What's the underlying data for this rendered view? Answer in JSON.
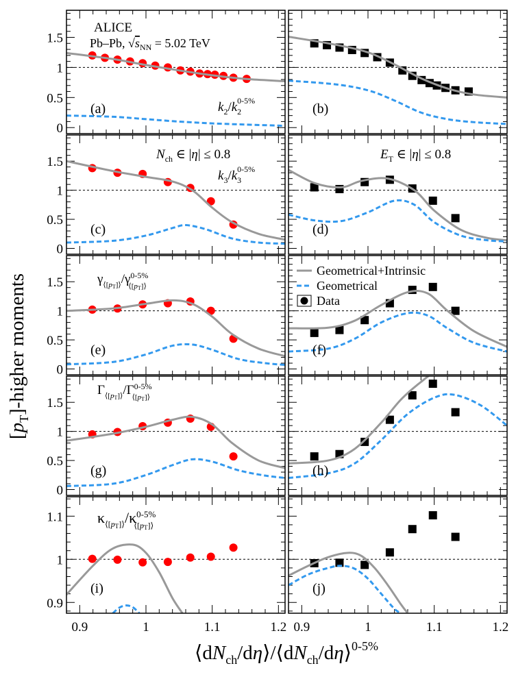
{
  "figure": {
    "ylabel": "[p_T]-higher moments",
    "xlabel": "⟨dN_ch/dη⟩/⟨dN_ch/dη⟩^0-5%",
    "experiment": "ALICE",
    "system": "Pb–Pb, √sNN = 5.02 TeV",
    "colors": {
      "alice_data": "#ff0000",
      "model_data": "#000000",
      "geom_intrinsic": "#999999",
      "geometrical": "#3399ee"
    }
  },
  "chart_data": [
    {
      "type": "line",
      "panel": "(a)",
      "label": "k2/k2^0-5%",
      "xlim": [
        0.88,
        1.21
      ],
      "ylim": [
        -0.1,
        1.95
      ],
      "xticks": [],
      "yticks": [
        "0",
        "0.5",
        "1",
        "1.5"
      ],
      "series": [
        {
          "name": "Data",
          "kind": "points",
          "x": [
            0.919,
            0.938,
            0.957,
            0.976,
            0.995,
            1.014,
            1.033,
            1.052,
            1.067,
            1.081,
            1.093,
            1.104,
            1.117,
            1.132,
            1.152
          ],
          "y": [
            1.2,
            1.16,
            1.13,
            1.1,
            1.07,
            1.03,
            1.0,
            0.95,
            0.93,
            0.9,
            0.89,
            0.88,
            0.86,
            0.83,
            0.81
          ]
        },
        {
          "name": "Geometrical+Intrinsic",
          "kind": "line",
          "x": [
            0.88,
            0.95,
            1.0,
            1.05,
            1.1,
            1.15,
            1.21
          ],
          "y": [
            1.24,
            1.14,
            1.04,
            0.95,
            0.87,
            0.81,
            0.77
          ]
        },
        {
          "name": "Geometrical",
          "kind": "dashed",
          "x": [
            0.88,
            0.95,
            1.0,
            1.05,
            1.1,
            1.15,
            1.21
          ],
          "y": [
            0.2,
            0.18,
            0.14,
            0.1,
            0.07,
            0.05,
            0.03
          ]
        }
      ]
    },
    {
      "type": "line",
      "panel": "(b)",
      "label": "",
      "xlim": [
        0.88,
        1.21
      ],
      "ylim": [
        -0.1,
        1.95
      ],
      "xticks": [],
      "yticks": [],
      "series": [
        {
          "name": "Data",
          "kind": "points",
          "x": [
            0.919,
            0.938,
            0.957,
            0.976,
            0.995,
            1.014,
            1.033,
            1.052,
            1.067,
            1.081,
            1.093,
            1.104,
            1.117,
            1.132,
            1.152
          ],
          "y": [
            1.4,
            1.37,
            1.33,
            1.29,
            1.24,
            1.17,
            1.08,
            0.95,
            0.86,
            0.79,
            0.74,
            0.7,
            0.66,
            0.62,
            0.6
          ]
        },
        {
          "name": "Geometrical+Intrinsic",
          "kind": "line",
          "x": [
            0.88,
            0.95,
            1.0,
            1.04,
            1.08,
            1.12,
            1.16,
            1.21
          ],
          "y": [
            1.51,
            1.38,
            1.25,
            1.05,
            0.82,
            0.65,
            0.55,
            0.5
          ]
        },
        {
          "name": "Geometrical",
          "kind": "dashed",
          "x": [
            0.88,
            0.95,
            1.0,
            1.04,
            1.08,
            1.12,
            1.16,
            1.21
          ],
          "y": [
            0.78,
            0.72,
            0.62,
            0.45,
            0.25,
            0.14,
            0.09,
            0.06
          ]
        }
      ]
    },
    {
      "type": "line",
      "panel": "(c)",
      "label": "k3/k3^0-5%",
      "header": "N_ch ∈ |η| ≤ 0.8",
      "xlim": [
        0.88,
        1.21
      ],
      "ylim": [
        -0.1,
        1.95
      ],
      "xticks": [],
      "yticks": [
        "0",
        "0.5",
        "1",
        "1.5"
      ],
      "series": [
        {
          "name": "Data",
          "kind": "points",
          "x": [
            0.919,
            0.957,
            0.995,
            1.033,
            1.067,
            1.098,
            1.132
          ],
          "y": [
            1.38,
            1.3,
            1.28,
            1.14,
            1.04,
            0.81,
            0.41
          ]
        },
        {
          "name": "Geometrical+Intrinsic",
          "kind": "line",
          "x": [
            0.88,
            0.95,
            1.0,
            1.04,
            1.07,
            1.1,
            1.13,
            1.17,
            1.21
          ],
          "y": [
            1.5,
            1.33,
            1.23,
            1.15,
            1.0,
            0.7,
            0.45,
            0.25,
            0.15
          ]
        },
        {
          "name": "Geometrical",
          "kind": "dashed",
          "x": [
            0.88,
            0.95,
            1.0,
            1.04,
            1.06,
            1.09,
            1.13,
            1.17,
            1.21
          ],
          "y": [
            0.1,
            0.13,
            0.22,
            0.35,
            0.4,
            0.33,
            0.17,
            0.1,
            0.08
          ]
        }
      ]
    },
    {
      "type": "line",
      "panel": "(d)",
      "label": "",
      "header": "E_T ∈ |η| ≤ 0.8",
      "xlim": [
        0.88,
        1.21
      ],
      "ylim": [
        -0.1,
        1.95
      ],
      "xticks": [],
      "yticks": [],
      "series": [
        {
          "name": "Data",
          "kind": "points",
          "x": [
            0.919,
            0.957,
            0.995,
            1.033,
            1.067,
            1.098,
            1.132
          ],
          "y": [
            1.05,
            1.02,
            1.14,
            1.18,
            1.03,
            0.82,
            0.52
          ]
        },
        {
          "name": "Geometrical+Intrinsic",
          "kind": "line",
          "x": [
            0.88,
            0.92,
            0.96,
            0.99,
            1.03,
            1.07,
            1.1,
            1.14,
            1.18,
            1.21
          ],
          "y": [
            1.35,
            1.12,
            1.05,
            1.16,
            1.2,
            1.0,
            0.65,
            0.32,
            0.18,
            0.14
          ]
        },
        {
          "name": "Geometrical",
          "kind": "dashed",
          "x": [
            0.88,
            0.92,
            0.96,
            1.0,
            1.04,
            1.07,
            1.1,
            1.14,
            1.18,
            1.21
          ],
          "y": [
            0.58,
            0.48,
            0.47,
            0.62,
            0.82,
            0.75,
            0.45,
            0.22,
            0.14,
            0.12
          ]
        }
      ]
    },
    {
      "type": "line",
      "panel": "(e)",
      "label": "γ⟨[pT]⟩/γ^0-5%⟨[pT]⟩",
      "xlim": [
        0.88,
        1.21
      ],
      "ylim": [
        -0.1,
        1.95
      ],
      "xticks": [],
      "yticks": [
        "0",
        "0.5",
        "1",
        "1.5"
      ],
      "series": [
        {
          "name": "Data",
          "kind": "points",
          "x": [
            0.919,
            0.957,
            0.995,
            1.033,
            1.067,
            1.098,
            1.132
          ],
          "y": [
            1.02,
            1.04,
            1.11,
            1.13,
            1.16,
            1.0,
            0.52
          ]
        },
        {
          "name": "Geometrical+Intrinsic",
          "kind": "line",
          "x": [
            0.88,
            0.95,
            1.0,
            1.04,
            1.07,
            1.1,
            1.13,
            1.17,
            1.21
          ],
          "y": [
            1.0,
            1.04,
            1.12,
            1.18,
            1.12,
            0.9,
            0.6,
            0.35,
            0.22
          ]
        },
        {
          "name": "Geometrical",
          "kind": "dashed",
          "x": [
            0.88,
            0.95,
            1.0,
            1.04,
            1.07,
            1.1,
            1.14,
            1.18,
            1.21
          ],
          "y": [
            0.08,
            0.12,
            0.25,
            0.4,
            0.42,
            0.33,
            0.17,
            0.1,
            0.07
          ]
        }
      ]
    },
    {
      "type": "line",
      "panel": "(f)",
      "label": "",
      "xlim": [
        0.88,
        1.21
      ],
      "ylim": [
        -0.1,
        1.95
      ],
      "xticks": [],
      "yticks": [],
      "legend": [
        "Geometrical+Intrinsic",
        "Geometrical",
        "Data"
      ],
      "series": [
        {
          "name": "Data",
          "kind": "points",
          "x": [
            0.919,
            0.957,
            0.995,
            1.033,
            1.067,
            1.098,
            1.132
          ],
          "y": [
            0.62,
            0.67,
            0.84,
            1.13,
            1.36,
            1.41,
            1.0
          ]
        },
        {
          "name": "Geometrical+Intrinsic",
          "kind": "line",
          "x": [
            0.88,
            0.94,
            0.98,
            1.02,
            1.06,
            1.09,
            1.12,
            1.16,
            1.21
          ],
          "y": [
            0.7,
            0.71,
            0.83,
            1.1,
            1.32,
            1.3,
            1.0,
            0.65,
            0.38
          ]
        },
        {
          "name": "Geometrical",
          "kind": "dashed",
          "x": [
            0.88,
            0.94,
            0.98,
            1.02,
            1.06,
            1.09,
            1.12,
            1.16,
            1.21
          ],
          "y": [
            0.3,
            0.35,
            0.52,
            0.8,
            0.96,
            0.92,
            0.7,
            0.45,
            0.3
          ]
        }
      ]
    },
    {
      "type": "line",
      "panel": "(g)",
      "label": "Γ⟨[pT]⟩/Γ^0-5%⟨[pT]⟩",
      "xlim": [
        0.88,
        1.21
      ],
      "ylim": [
        -0.1,
        1.95
      ],
      "xticks": [],
      "yticks": [
        "0",
        "0.5",
        "1",
        "1.5"
      ],
      "series": [
        {
          "name": "Data",
          "kind": "points",
          "x": [
            0.919,
            0.957,
            0.995,
            1.033,
            1.067,
            1.098,
            1.132
          ],
          "y": [
            0.95,
            0.99,
            1.09,
            1.15,
            1.22,
            1.08,
            0.57
          ]
        },
        {
          "name": "Geometrical+Intrinsic",
          "kind": "line",
          "x": [
            0.88,
            0.95,
            1.0,
            1.04,
            1.07,
            1.1,
            1.13,
            1.17,
            1.21
          ],
          "y": [
            0.84,
            0.96,
            1.08,
            1.2,
            1.25,
            1.12,
            0.8,
            0.5,
            0.37
          ]
        },
        {
          "name": "Geometrical",
          "kind": "dashed",
          "x": [
            0.88,
            0.95,
            1.0,
            1.04,
            1.07,
            1.1,
            1.14,
            1.18,
            1.21
          ],
          "y": [
            0.06,
            0.1,
            0.25,
            0.42,
            0.52,
            0.48,
            0.33,
            0.24,
            0.2
          ]
        }
      ]
    },
    {
      "type": "line",
      "panel": "(h)",
      "label": "",
      "xlim": [
        0.88,
        1.21
      ],
      "ylim": [
        -0.1,
        1.95
      ],
      "xticks": [],
      "yticks": [],
      "series": [
        {
          "name": "Data",
          "kind": "points",
          "x": [
            0.919,
            0.957,
            0.995,
            1.033,
            1.067,
            1.098,
            1.132
          ],
          "y": [
            0.57,
            0.61,
            0.82,
            1.2,
            1.62,
            1.82,
            1.33
          ]
        },
        {
          "name": "Geometrical+Intrinsic",
          "kind": "line",
          "x": [
            0.88,
            0.94,
            0.98,
            1.02,
            1.05,
            1.08,
            1.1,
            1.13,
            1.16
          ],
          "y": [
            0.45,
            0.5,
            0.7,
            1.15,
            1.55,
            1.85,
            2.0,
            2.05,
            1.95
          ]
        },
        {
          "name": "Geometrical",
          "kind": "dashed",
          "x": [
            0.88,
            0.94,
            0.98,
            1.02,
            1.06,
            1.1,
            1.13,
            1.17,
            1.21
          ],
          "y": [
            0.2,
            0.28,
            0.45,
            0.85,
            1.3,
            1.58,
            1.63,
            1.45,
            1.1
          ]
        }
      ]
    },
    {
      "type": "line",
      "panel": "(i)",
      "label": "κ⟨[pT]⟩/κ^0-5%⟨[pT]⟩",
      "xlim": [
        0.88,
        1.21
      ],
      "ylim": [
        0.875,
        1.145
      ],
      "xticks": [
        "0.9",
        "1",
        "1.1",
        "1.2"
      ],
      "yticks": [
        "0.9",
        "1",
        "1.1"
      ],
      "series": [
        {
          "name": "Data",
          "kind": "points",
          "x": [
            0.919,
            0.957,
            0.995,
            1.033,
            1.067,
            1.098,
            1.132
          ],
          "y": [
            1.001,
            0.999,
            0.993,
            0.994,
            1.004,
            1.006,
            1.027
          ]
        },
        {
          "name": "Geometrical+Intrinsic",
          "kind": "line",
          "x": [
            0.88,
            0.92,
            0.95,
            0.98,
            1.0,
            1.02,
            1.04,
            1.055
          ],
          "y": [
            0.918,
            0.985,
            1.025,
            1.034,
            1.015,
            0.97,
            0.91,
            0.875
          ]
        },
        {
          "name": "Geometrical",
          "kind": "dashed",
          "x": [
            0.95,
            0.96,
            0.97,
            0.98,
            0.99
          ],
          "y": [
            0.875,
            0.888,
            0.893,
            0.889,
            0.875
          ]
        }
      ]
    },
    {
      "type": "line",
      "panel": "(j)",
      "label": "",
      "xlim": [
        0.88,
        1.21
      ],
      "ylim": [
        0.875,
        1.145
      ],
      "xticks": [
        "0.9",
        "1",
        "1.1",
        "1.2"
      ],
      "yticks": [],
      "series": [
        {
          "name": "Data",
          "kind": "points",
          "x": [
            0.919,
            0.957,
            0.995,
            1.033,
            1.067,
            1.098,
            1.132
          ],
          "y": [
            0.991,
            0.992,
            0.987,
            1.016,
            1.07,
            1.102,
            1.052
          ]
        },
        {
          "name": "Geometrical+Intrinsic",
          "kind": "line",
          "x": [
            0.88,
            0.91,
            0.94,
            0.97,
            0.99,
            1.01,
            1.03,
            1.05,
            1.06
          ],
          "y": [
            0.962,
            0.985,
            1.005,
            1.015,
            1.008,
            0.98,
            0.94,
            0.895,
            0.875
          ]
        },
        {
          "name": "Geometrical",
          "kind": "dashed",
          "x": [
            0.88,
            0.91,
            0.94,
            0.96,
            0.98,
            1.0,
            1.02,
            1.04,
            1.05
          ],
          "y": [
            0.94,
            0.965,
            0.98,
            0.985,
            0.978,
            0.955,
            0.92,
            0.885,
            0.875
          ]
        }
      ]
    }
  ]
}
